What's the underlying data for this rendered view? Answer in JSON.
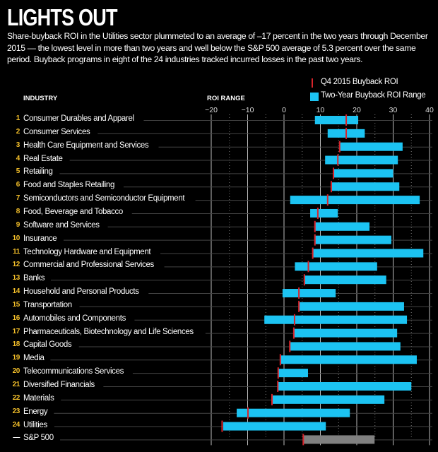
{
  "header": {
    "title": "LIGHTS OUT",
    "subtitle": "Share-buyback ROI in the Utilities sector plummeted to an average of –17 percent in the two years through December 2015 — the lowest level in more than two years and well below the S&P 500 average of 5.3 percent over the same period. Buyback programs in eight of the 24 industries tracked incurred losses in the past two years."
  },
  "colors": {
    "background": "#000000",
    "range_bar": "#1cc3f2",
    "roi_marker": "#d8242b",
    "benchmark_bar": "#808080",
    "rank_number": "#f5c02a"
  },
  "chart_data": {
    "type": "bar",
    "subtype": "floating-range-with-marker",
    "title": "LIGHTS OUT",
    "column_headers": {
      "industry": "INDUSTRY",
      "range": "ROI RANGE"
    },
    "xlabel": "ROI RANGE",
    "xlim": [
      -20,
      40
    ],
    "xticks": [
      -20,
      -10,
      0,
      10,
      20,
      30,
      40
    ],
    "grid": true,
    "legend": {
      "placement": "top-right",
      "entries": [
        {
          "label": "Q4 2015 Buyback ROI",
          "marker": "red-line"
        },
        {
          "label": "Two-Year Buyback ROI Range",
          "marker": "blue-square"
        }
      ]
    },
    "series": [
      {
        "rank": "1",
        "name": "Consumer Durables and Apparel",
        "min": 8.5,
        "max": 20.4,
        "q4_roi": 17.1
      },
      {
        "rank": "2",
        "name": "Consumer Services",
        "min": 12.0,
        "max": 22.2,
        "q4_roi": 17.1
      },
      {
        "rank": "3",
        "name": "Health Care Equipment and Services",
        "min": 15.3,
        "max": 32.6,
        "q4_roi": 15.3
      },
      {
        "rank": "4",
        "name": "Real Estate",
        "min": 11.3,
        "max": 31.3,
        "q4_roi": 14.8
      },
      {
        "rank": "5",
        "name": "Retailing",
        "min": 13.6,
        "max": 30.0,
        "q4_roi": 13.6
      },
      {
        "rank": "6",
        "name": "Food and Staples Retailing",
        "min": 13.0,
        "max": 31.7,
        "q4_roi": 13.0
      },
      {
        "rank": "7",
        "name": "Semiconductors and Semiconductor Equipment",
        "min": 1.7,
        "max": 37.3,
        "q4_roi": 12.0
      },
      {
        "rank": "8",
        "name": "Food, Beverage and Tobacco",
        "min": 7.2,
        "max": 14.8,
        "q4_roi": 9.3
      },
      {
        "rank": "9",
        "name": "Software and Services",
        "min": 8.5,
        "max": 23.5,
        "q4_roi": 8.5
      },
      {
        "rank": "10",
        "name": "Insurance",
        "min": 8.5,
        "max": 29.5,
        "q4_roi": 8.5
      },
      {
        "rank": "11",
        "name": "Technology Hardware and Equipment",
        "min": 7.9,
        "max": 38.3,
        "q4_roi": 7.9
      },
      {
        "rank": "12",
        "name": "Commercial and Professional Services",
        "min": 3.0,
        "max": 25.6,
        "q4_roi": 6.7
      },
      {
        "rank": "13",
        "name": "Banks",
        "min": 5.6,
        "max": 28.1,
        "q4_roi": 5.6
      },
      {
        "rank": "14",
        "name": "Household and Personal Products",
        "min": -0.4,
        "max": 14.2,
        "q4_roi": 4.1
      },
      {
        "rank": "15",
        "name": "Transportation",
        "min": 4.1,
        "max": 33.0,
        "q4_roi": 4.1
      },
      {
        "rank": "16",
        "name": "Automobiles and Components",
        "min": -5.4,
        "max": 33.8,
        "q4_roi": 2.9
      },
      {
        "rank": "17",
        "name": "Pharmaceuticals, Biotechnology and Life Sciences",
        "min": 2.7,
        "max": 31.1,
        "q4_roi": 2.7
      },
      {
        "rank": "18",
        "name": "Capital Goods",
        "min": 1.6,
        "max": 32.0,
        "q4_roi": 1.6
      },
      {
        "rank": "19",
        "name": "Media",
        "min": -1.0,
        "max": 36.5,
        "q4_roi": -1.0
      },
      {
        "rank": "20",
        "name": "Telecommunications Services",
        "min": -1.6,
        "max": 6.6,
        "q4_roi": -1.6
      },
      {
        "rank": "21",
        "name": "Diversified Financials",
        "min": -1.7,
        "max": 35.0,
        "q4_roi": -1.7
      },
      {
        "rank": "22",
        "name": "Materials",
        "min": -3.3,
        "max": 27.6,
        "q4_roi": -3.3
      },
      {
        "rank": "23",
        "name": "Energy",
        "min": -13.0,
        "max": 18.1,
        "q4_roi": -9.9
      },
      {
        "rank": "24",
        "name": "Utilities",
        "min": -16.7,
        "max": 11.5,
        "q4_roi": -17.0
      },
      {
        "rank": "—",
        "name": "S&P 500",
        "min": 5.3,
        "max": 24.9,
        "q4_roi": 5.3,
        "benchmark": true
      }
    ]
  }
}
